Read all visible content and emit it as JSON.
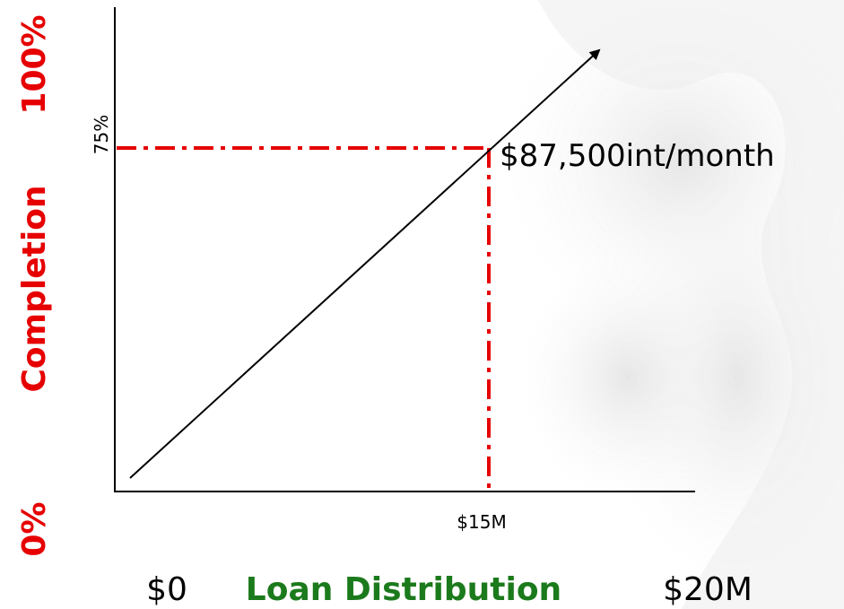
{
  "axes": {
    "y_min_label": "0%",
    "y_label": "Completion",
    "y_max_label": "100%",
    "y_marker_label": "75%",
    "x_min_label": "$0",
    "x_label": "Loan Distribution",
    "x_max_label": "$20M",
    "x_marker_label": "$15M"
  },
  "annotation": "$87,500int/month"
}
